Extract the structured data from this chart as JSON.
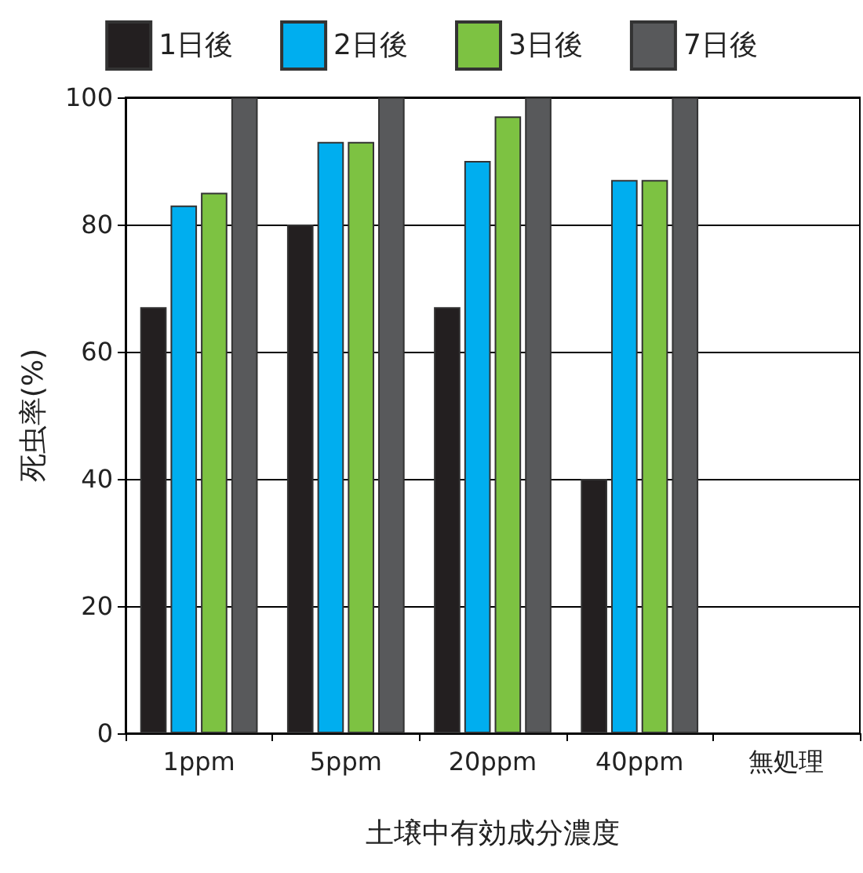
{
  "chart_data": {
    "type": "bar",
    "xlabel": "土壌中有効成分濃度",
    "ylabel": "死虫率(%)",
    "categories": [
      "1ppm",
      "5ppm",
      "20ppm",
      "40ppm",
      "無処理"
    ],
    "series": [
      {
        "name": "1日後",
        "color": "#231f20",
        "values": [
          67,
          80,
          67,
          40,
          null
        ]
      },
      {
        "name": "2日後",
        "color": "#00aeef",
        "values": [
          83,
          93,
          90,
          87,
          null
        ]
      },
      {
        "name": "3日後",
        "color": "#7dc242",
        "values": [
          85,
          93,
          97,
          87,
          null
        ]
      },
      {
        "name": "7日後",
        "color": "#58595b",
        "values": [
          100,
          100,
          100,
          100,
          null
        ]
      }
    ],
    "ylim": [
      0,
      100
    ],
    "yticks": [
      0,
      20,
      40,
      60,
      80,
      100
    ],
    "grid": "y",
    "legend": "top"
  }
}
